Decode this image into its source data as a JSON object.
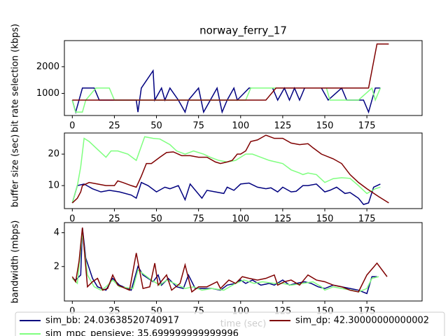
{
  "chart_data": [
    {
      "type": "line",
      "title": "norway_ferry_17",
      "ylabel": "bit rate selection (kbps)",
      "xlim": [
        -4.7,
        207.8
      ],
      "xticks": [
        0,
        25,
        50,
        75,
        100,
        125,
        150,
        175
      ],
      "ylim": [
        173,
        2977
      ],
      "yticks": [
        1000,
        2000
      ],
      "series": [
        {
          "color": "#00007f",
          "x": [
            0,
            2,
            6,
            13,
            16,
            38,
            39,
            41,
            48,
            49,
            53,
            55,
            58,
            63,
            67,
            69,
            75,
            78,
            82,
            86,
            89,
            92,
            96,
            98,
            105,
            119,
            122,
            126,
            129,
            132,
            135,
            138,
            148,
            152,
            160,
            163,
            173,
            176,
            180,
            183
          ],
          "values": [
            750,
            300,
            1200,
            1200,
            750,
            750,
            300,
            1200,
            1850,
            750,
            1200,
            750,
            1200,
            750,
            300,
            750,
            1200,
            300,
            750,
            1200,
            300,
            750,
            1200,
            750,
            1200,
            1200,
            750,
            1200,
            750,
            1200,
            750,
            1200,
            1200,
            750,
            1200,
            750,
            750,
            300,
            1200,
            1200
          ]
        },
        {
          "color": "#7fff7f",
          "x": [
            0,
            2,
            6,
            8,
            14,
            22,
            25,
            103,
            106,
            151,
            153,
            170,
            178,
            180,
            183
          ],
          "values": [
            750,
            300,
            300,
            750,
            1200,
            1200,
            750,
            750,
            1200,
            1200,
            750,
            750,
            1200,
            750,
            1200
          ]
        },
        {
          "color": "#7f0000",
          "x": [
            0,
            103,
            115,
            121,
            173,
            176,
            181,
            188
          ],
          "values": [
            750,
            750,
            750,
            1200,
            1200,
            1200,
            2850,
            2850
          ]
        }
      ]
    },
    {
      "type": "line",
      "ylabel": "buffer size (sec)",
      "xlim": [
        -4.7,
        207.8
      ],
      "xticks": [
        0,
        25,
        50,
        75,
        100,
        125,
        150,
        175
      ],
      "ylim": [
        2.7,
        26.7
      ],
      "yticks": [
        10,
        20
      ],
      "series": [
        {
          "color": "#00007f",
          "x": [
            0,
            3,
            7,
            12,
            17,
            22,
            28,
            35,
            38,
            41,
            45,
            50,
            55,
            58,
            63,
            67,
            70,
            77,
            80,
            85,
            90,
            92,
            96,
            100,
            105,
            110,
            115,
            118,
            122,
            125,
            130,
            133,
            137,
            140,
            145,
            150,
            153,
            157,
            162,
            165,
            170,
            173,
            176,
            179,
            183
          ],
          "values": [
            4.5,
            10,
            10.5,
            9,
            8,
            8.5,
            8,
            7,
            6,
            11,
            10,
            8,
            9.5,
            9,
            10,
            5.5,
            10.5,
            6,
            8.5,
            8,
            7.5,
            9.5,
            8.5,
            10.5,
            10.8,
            9.5,
            9,
            9.3,
            8,
            9.5,
            8,
            8.2,
            10,
            10,
            10.5,
            8,
            8.5,
            9.5,
            7.5,
            7.8,
            6,
            4,
            4.5,
            9.5,
            10.5
          ]
        },
        {
          "color": "#7fff7f",
          "x": [
            0,
            3,
            5,
            7,
            10,
            15,
            20,
            23,
            27,
            33,
            38,
            43,
            48,
            52,
            58,
            62,
            67,
            72,
            78,
            82,
            87,
            92,
            97,
            100,
            103,
            107,
            112,
            117,
            125,
            130,
            135,
            137,
            140,
            145,
            150,
            155,
            160,
            165,
            170,
            175,
            180,
            183
          ],
          "values": [
            4.5,
            10,
            16,
            25,
            24,
            21.5,
            19,
            21,
            21,
            20,
            18,
            25.5,
            25,
            24.8,
            23,
            21,
            20,
            21,
            20,
            19,
            18,
            17.5,
            18,
            19,
            20,
            20,
            19,
            18,
            17,
            15,
            14,
            13.5,
            14,
            13.5,
            11,
            12.2,
            12.5,
            12.3,
            10,
            7.5,
            9,
            9.5
          ]
        },
        {
          "color": "#7f0000",
          "x": [
            0,
            3,
            5,
            6,
            10,
            15,
            20,
            25,
            27,
            30,
            35,
            38,
            41,
            44,
            47,
            52,
            56,
            60,
            65,
            70,
            75,
            80,
            85,
            88,
            92,
            95,
            98,
            100,
            103,
            106,
            110,
            115,
            120,
            125,
            130,
            135,
            140,
            143,
            148,
            155,
            160,
            165,
            170,
            175,
            182,
            188
          ],
          "values": [
            4.5,
            6,
            8,
            10,
            11,
            10.5,
            10,
            10,
            11.5,
            11,
            10,
            9.5,
            13,
            17,
            17,
            19,
            20.5,
            20.7,
            19.5,
            19.5,
            19,
            19,
            17.5,
            17,
            17.5,
            18,
            20,
            20,
            21,
            24,
            24.5,
            26,
            25,
            25,
            23.5,
            23,
            23.3,
            22,
            20,
            18.5,
            17,
            13.5,
            11,
            9,
            6.5,
            4.5
          ]
        }
      ]
    },
    {
      "type": "line",
      "ylabel": "bandwidth (mbps)",
      "xlabel": "time (sec)",
      "xlim": [
        -4.7,
        207.8
      ],
      "xticks": [
        0,
        25,
        50,
        75,
        100,
        125,
        150,
        175
      ],
      "ylim": [
        -0.04,
        4.6
      ],
      "yticks": [
        2,
        4
      ],
      "legend": "lower center",
      "series": [
        {
          "name": "sim_bb: 24.03638520740917",
          "color": "#00007f",
          "x": [
            0,
            2,
            5,
            6,
            8,
            12,
            15,
            20,
            24,
            28,
            35,
            39,
            42,
            45,
            48,
            51,
            53,
            57,
            62,
            66,
            69,
            73,
            77,
            83,
            88,
            92,
            97,
            100,
            103,
            107,
            112,
            117,
            120,
            125,
            129,
            133,
            138,
            142,
            146,
            150,
            155,
            160,
            165,
            170,
            175,
            178,
            181
          ],
          "values": [
            1.3,
            1.2,
            1.5,
            4.3,
            2.5,
            1.3,
            0.8,
            0.6,
            1.3,
            0.9,
            0.6,
            2.0,
            1.5,
            1.3,
            1.1,
            1.5,
            0.9,
            1.3,
            0.8,
            0.7,
            1.5,
            0.7,
            0.7,
            0.7,
            0.6,
            0.9,
            1.0,
            1.2,
            1.0,
            1.2,
            0.9,
            1.0,
            0.9,
            1.2,
            0.9,
            1.0,
            1.1,
            1.0,
            0.8,
            0.7,
            0.9,
            0.8,
            0.7,
            0.6,
            0.4,
            1.4,
            1.4
          ]
        },
        {
          "name": "sim_mpc_pensieve: 35.699999999999996",
          "color": "#7fff7f",
          "x": [
            0,
            3,
            6,
            9,
            13,
            17,
            20,
            24,
            28,
            36,
            39,
            43,
            47,
            52,
            56,
            63,
            67,
            72,
            77,
            83,
            90,
            97,
            102,
            108,
            113,
            120,
            125,
            130,
            137,
            143,
            148,
            150,
            155,
            160,
            166,
            170,
            175,
            178,
            182
          ],
          "values": [
            1.3,
            1.0,
            4.0,
            1.5,
            0.8,
            0.6,
            0.8,
            1.2,
            0.8,
            0.7,
            1.8,
            1.5,
            1.2,
            0.9,
            1.2,
            0.9,
            0.7,
            0.8,
            0.6,
            0.7,
            0.6,
            1.0,
            1.2,
            1.0,
            1.1,
            1.0,
            1.0,
            0.9,
            1.0,
            1.1,
            0.8,
            0.6,
            0.8,
            0.7,
            0.6,
            0.5,
            0.7,
            1.3,
            1.4
          ]
        },
        {
          "name": "sim_dp: 42.30000000000002",
          "color": "#7f0000",
          "x": [
            0,
            2,
            4,
            6,
            9,
            12,
            15,
            18,
            21,
            24,
            27,
            34,
            38,
            42,
            46,
            49,
            51,
            56,
            59,
            64,
            67,
            71,
            75,
            80,
            86,
            88,
            93,
            97,
            101,
            105,
            110,
            115,
            120,
            122,
            126,
            130,
            135,
            140,
            145,
            150,
            155,
            160,
            165,
            170,
            175,
            181,
            187
          ],
          "values": [
            1.4,
            1.1,
            2.3,
            4.3,
            0.8,
            1.1,
            1.3,
            0.6,
            0.7,
            1.5,
            0.9,
            0.6,
            2.8,
            0.7,
            0.8,
            2.2,
            0.9,
            1.5,
            0.6,
            1.0,
            2.1,
            0.5,
            0.8,
            0.8,
            1.1,
            0.7,
            1.2,
            1.0,
            1.4,
            1.3,
            1.2,
            1.3,
            1.5,
            0.9,
            1.1,
            1.2,
            0.9,
            1.5,
            1.2,
            1.1,
            0.9,
            0.8,
            0.6,
            0.5,
            1.5,
            2.2,
            1.4
          ]
        }
      ]
    }
  ]
}
